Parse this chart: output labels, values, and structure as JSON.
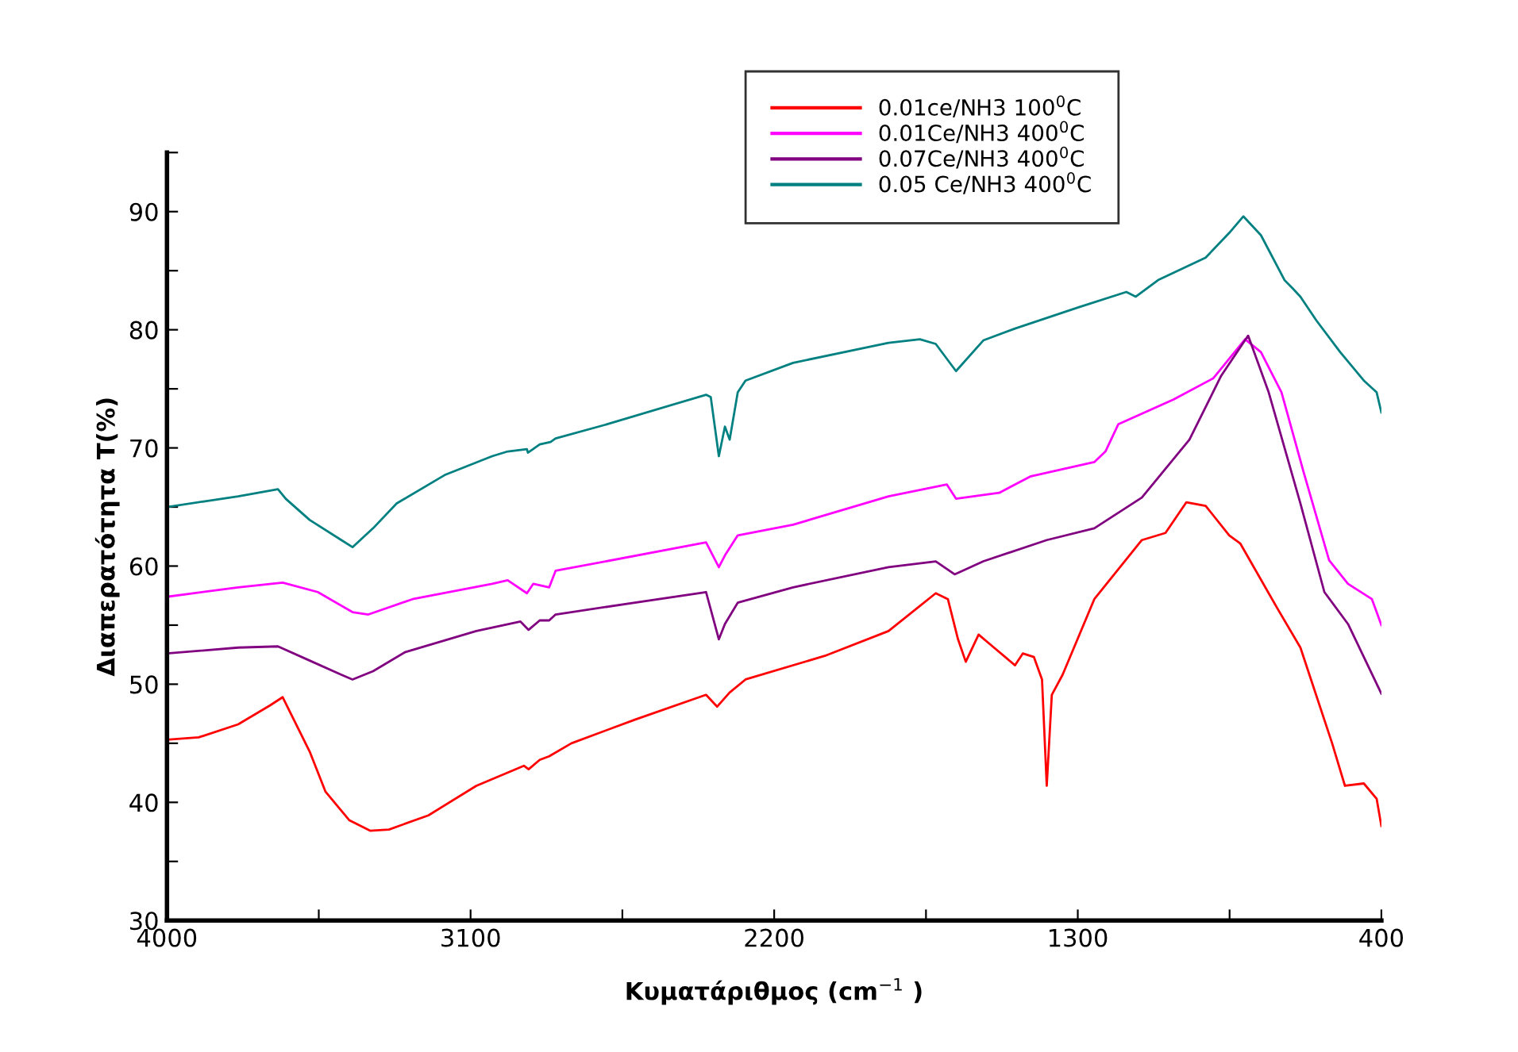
{
  "chart_data": {
    "type": "line",
    "xlabel": "Κυματάριθμος (cm$^{−1}$ )",
    "ylabel": "Διαπερατότητα T(%)",
    "xlim": [
      4000,
      400
    ],
    "ylim": [
      30,
      95
    ],
    "xticks": [
      4000,
      {
        "value": 3550,
        "label": null
      },
      3100,
      {
        "value": 2650,
        "label": null
      },
      2200,
      {
        "value": 1750,
        "label": null
      },
      1300,
      {
        "value": 850,
        "label": null
      },
      400
    ],
    "yticks": [
      30,
      {
        "value": 35,
        "label": null
      },
      40,
      {
        "value": 45,
        "label": null
      },
      50,
      {
        "value": 55,
        "label": null
      },
      60,
      {
        "value": 65,
        "label": null
      },
      70,
      {
        "value": 75,
        "label": null
      },
      80,
      {
        "value": 85,
        "label": null
      },
      90,
      {
        "value": 95,
        "label": null
      }
    ],
    "grid": false,
    "legend": "top",
    "marker": "none",
    "line_style": "solid",
    "series": [
      {
        "name": "0.01ce/NH3 100$^{0}$C",
        "color": "#ff0000",
        "x": [
          4000,
          3906,
          3789,
          3695,
          3657,
          3624,
          3577,
          3530,
          3460,
          3398,
          3342,
          3225,
          3083,
          2942,
          2928,
          2895,
          2867,
          2801,
          2613,
          2402,
          2369,
          2332,
          2285,
          2050,
          1861,
          1721,
          1685,
          1655,
          1632,
          1594,
          1561,
          1486,
          1463,
          1430,
          1406,
          1392,
          1377,
          1345,
          1251,
          1110,
          1040,
          978,
          921,
          851,
          818,
          710,
          640,
          546,
          508,
          452,
          414,
          400
        ],
        "values": [
          45.3,
          45.5,
          46.6,
          48.2,
          48.9,
          47.0,
          44.3,
          40.9,
          38.5,
          37.6,
          37.7,
          38.9,
          41.4,
          43.1,
          42.8,
          43.6,
          43.9,
          45.0,
          47.0,
          49.1,
          48.1,
          49.3,
          50.4,
          52.4,
          54.5,
          57.7,
          57.2,
          53.8,
          51.9,
          54.2,
          53.4,
          51.6,
          52.6,
          52.3,
          50.4,
          41.4,
          49.1,
          50.8,
          57.2,
          62.2,
          62.8,
          65.4,
          65.1,
          62.6,
          61.9,
          56.5,
          53.1,
          45.0,
          41.4,
          41.6,
          40.3,
          38.0
        ]
      },
      {
        "name": "0.01Ce/NH3 400$^{0}$C",
        "color": "#ff00ff",
        "x": [
          4000,
          3789,
          3657,
          3553,
          3450,
          3403,
          3272,
          3036,
          2990,
          2933,
          2914,
          2867,
          2848,
          2402,
          2364,
          2346,
          2308,
          2144,
          1861,
          1688,
          1661,
          1533,
          1439,
          1251,
          1218,
          1180,
          1016,
          898,
          804,
          757,
          696,
          631,
          555,
          499,
          428,
          400
        ],
        "values": [
          57.4,
          58.2,
          58.6,
          57.8,
          56.1,
          55.9,
          57.2,
          58.5,
          58.8,
          57.7,
          58.5,
          58.2,
          59.6,
          62.0,
          59.9,
          60.9,
          62.6,
          63.5,
          65.9,
          66.9,
          65.7,
          66.2,
          67.6,
          68.8,
          69.7,
          72.0,
          74.1,
          75.9,
          79.2,
          78.1,
          74.7,
          68.0,
          60.5,
          58.5,
          57.2,
          55.0
        ]
      },
      {
        "name": "0.07Ce/NH3 400$^{0}$C",
        "color": "#800080",
        "x": [
          4000,
          3789,
          3671,
          3577,
          3483,
          3450,
          3389,
          3295,
          3083,
          2952,
          2928,
          2895,
          2867,
          2848,
          2402,
          2364,
          2346,
          2308,
          2144,
          1861,
          1721,
          1665,
          1580,
          1392,
          1251,
          1110,
          969,
          875,
          795,
          734,
          640,
          569,
          499,
          400
        ],
        "values": [
          52.6,
          53.1,
          53.2,
          52.0,
          50.8,
          50.4,
          51.1,
          52.7,
          54.5,
          55.3,
          54.6,
          55.4,
          55.4,
          55.9,
          57.8,
          53.8,
          55.1,
          56.9,
          58.2,
          59.9,
          60.4,
          59.3,
          60.4,
          62.2,
          63.2,
          65.8,
          70.7,
          76.1,
          79.5,
          74.7,
          65.3,
          57.8,
          55.1,
          49.2
        ]
      },
      {
        "name": "0.05 Ce/NH3 400$^{0}$C",
        "color": "#008080",
        "x": [
          4000,
          3883,
          3789,
          3671,
          3648,
          3577,
          3483,
          3450,
          3389,
          3319,
          3177,
          3036,
          2990,
          2933,
          2930,
          2895,
          2863,
          2848,
          2708,
          2402,
          2388,
          2364,
          2346,
          2332,
          2308,
          2285,
          2144,
          1861,
          1768,
          1721,
          1661,
          1580,
          1486,
          1298,
          1156,
          1128,
          1062,
          921,
          851,
          809,
          757,
          687,
          663,
          640,
          593,
          522,
          452,
          414,
          400
        ],
        "values": [
          65.0,
          65.5,
          65.9,
          66.5,
          65.7,
          63.9,
          62.2,
          61.6,
          63.2,
          65.3,
          67.7,
          69.3,
          69.7,
          69.9,
          69.6,
          70.3,
          70.5,
          70.8,
          71.9,
          74.5,
          74.3,
          69.3,
          71.8,
          70.7,
          74.7,
          75.7,
          77.2,
          78.9,
          79.2,
          78.8,
          76.5,
          79.1,
          80.1,
          81.9,
          83.2,
          82.8,
          84.2,
          86.1,
          88.2,
          89.6,
          88.0,
          84.2,
          83.5,
          82.8,
          80.8,
          78.1,
          75.7,
          74.7,
          73.0
        ]
      }
    ]
  }
}
